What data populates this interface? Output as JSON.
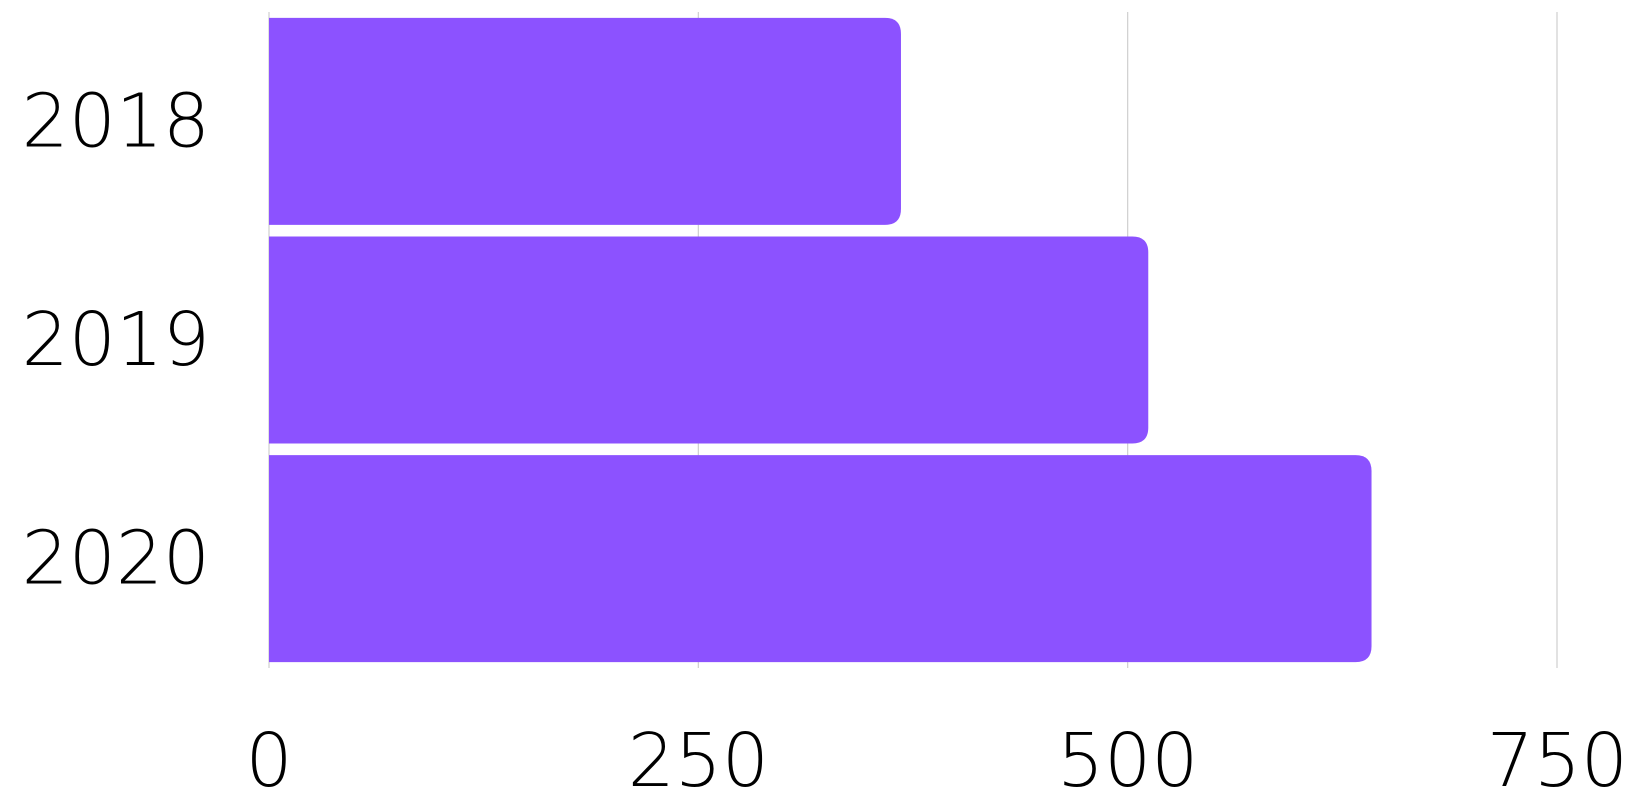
{
  "chart_data": {
    "type": "bar",
    "orientation": "horizontal",
    "categories": [
      "2018",
      "2019",
      "2020"
    ],
    "values": [
      368,
      512,
      642
    ],
    "xlim": [
      0,
      750
    ],
    "xticks": [
      "0",
      "250",
      "500",
      "750"
    ],
    "grid": true,
    "legend": "none",
    "title": "",
    "xlabel": "",
    "ylabel": ""
  },
  "colors": {
    "bar": "#8c52ff",
    "grid": "#cfcfcf",
    "text": "#000000"
  }
}
